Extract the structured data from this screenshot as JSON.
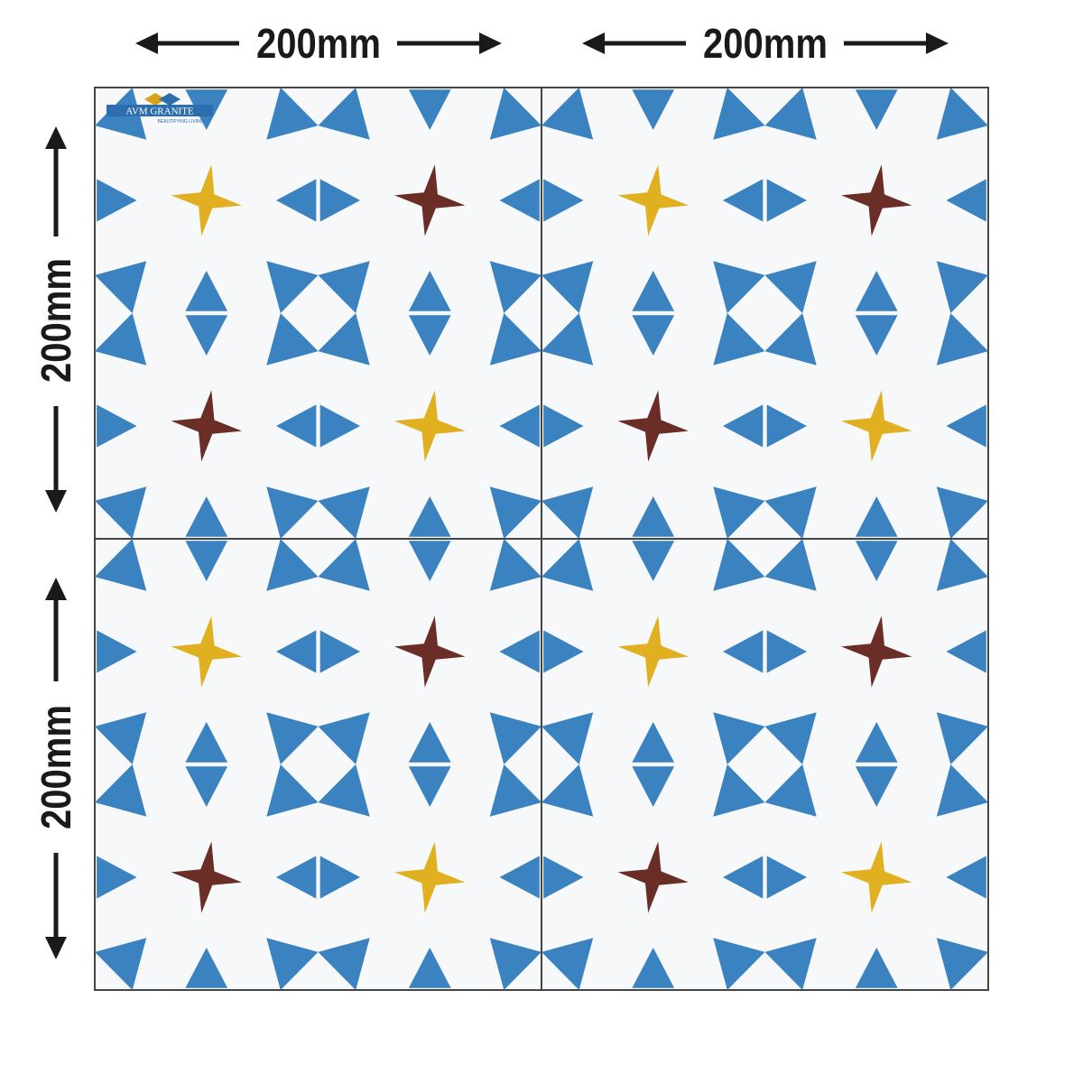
{
  "dimensions": {
    "top": [
      "200mm",
      "200mm"
    ],
    "left": [
      "200mm",
      "200mm"
    ]
  },
  "logo": {
    "name": "AVM GRANITE",
    "tagline": "BEAUTIFYING LIVING"
  }
}
